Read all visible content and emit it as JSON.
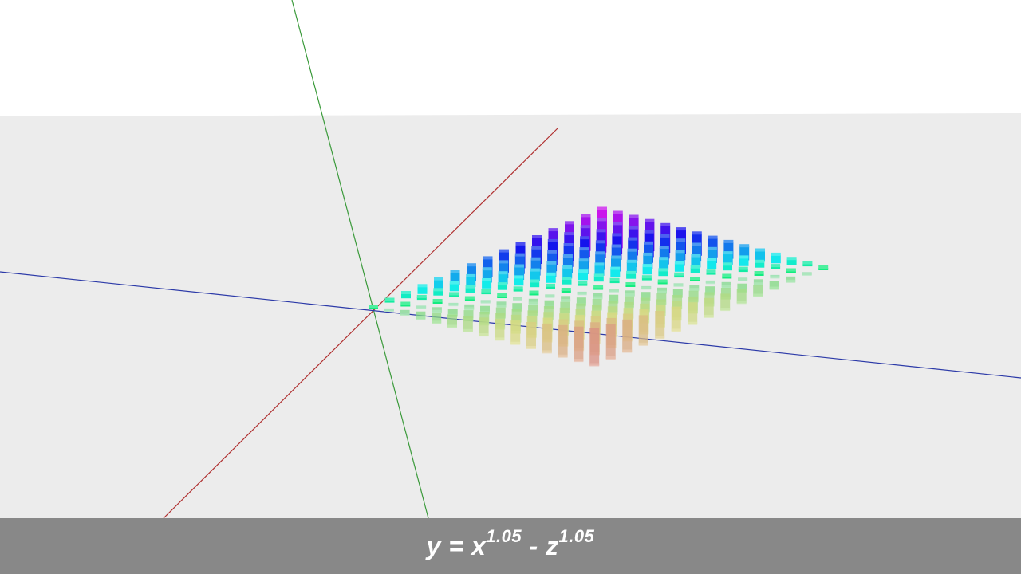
{
  "scene": {
    "background_sky": "#ffffff",
    "background_ground": "#ececec",
    "axes": {
      "x_axis_color": "#cc2222",
      "y_axis_color": "#33aa33",
      "z_axis_color": "#3344bb"
    },
    "surface": {
      "grid_size": 15,
      "exponent": 1.05
    }
  },
  "caption": {
    "y": "y",
    "eq": " = ",
    "x": "x",
    "x_exp": "1.05",
    "minus": " - ",
    "z": "z",
    "z_exp": "1.05"
  }
}
